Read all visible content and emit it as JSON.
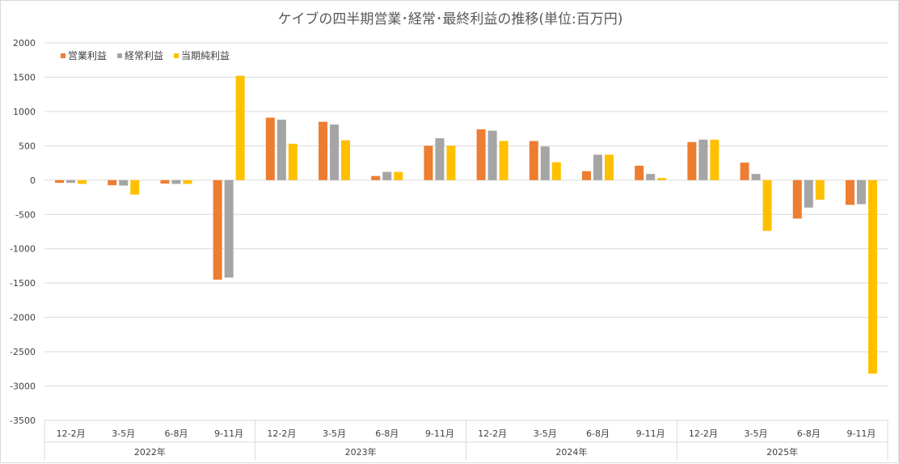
{
  "chart_data": {
    "type": "bar",
    "title": "ケイブの四半期営業･経常･最終利益の推移(単位:百万円)",
    "xlabel": "",
    "ylabel": "",
    "ylim": [
      -3500,
      2000
    ],
    "ytick_step": 500,
    "grid": true,
    "legend_position": "top-left",
    "categories": [
      "12-2月",
      "3-5月",
      "6-8月",
      "9-11月",
      "12-2月",
      "3-5月",
      "6-8月",
      "9-11月",
      "12-2月",
      "3-5月",
      "6-8月",
      "9-11月",
      "12-2月",
      "3-5月",
      "6-8月",
      "9-11月"
    ],
    "groups": [
      {
        "label": "2022年",
        "count": 4
      },
      {
        "label": "2023年",
        "count": 4
      },
      {
        "label": "2024年",
        "count": 4
      },
      {
        "label": "2025年",
        "count": 4
      }
    ],
    "series": [
      {
        "name": "営業利益",
        "color": "#ED7D31",
        "values": [
          -40,
          -75,
          -50,
          -1450,
          910,
          850,
          60,
          500,
          740,
          570,
          130,
          210,
          555,
          255,
          -560,
          -360
        ]
      },
      {
        "name": "経常利益",
        "color": "#A5A5A5",
        "values": [
          -40,
          -80,
          -55,
          -1420,
          880,
          810,
          120,
          610,
          720,
          490,
          370,
          90,
          590,
          90,
          -400,
          -350
        ]
      },
      {
        "name": "当期純利益",
        "color": "#FFC000",
        "values": [
          -55,
          -210,
          -55,
          1520,
          530,
          580,
          120,
          500,
          570,
          260,
          370,
          30,
          590,
          -740,
          -285,
          -2820
        ]
      }
    ]
  }
}
